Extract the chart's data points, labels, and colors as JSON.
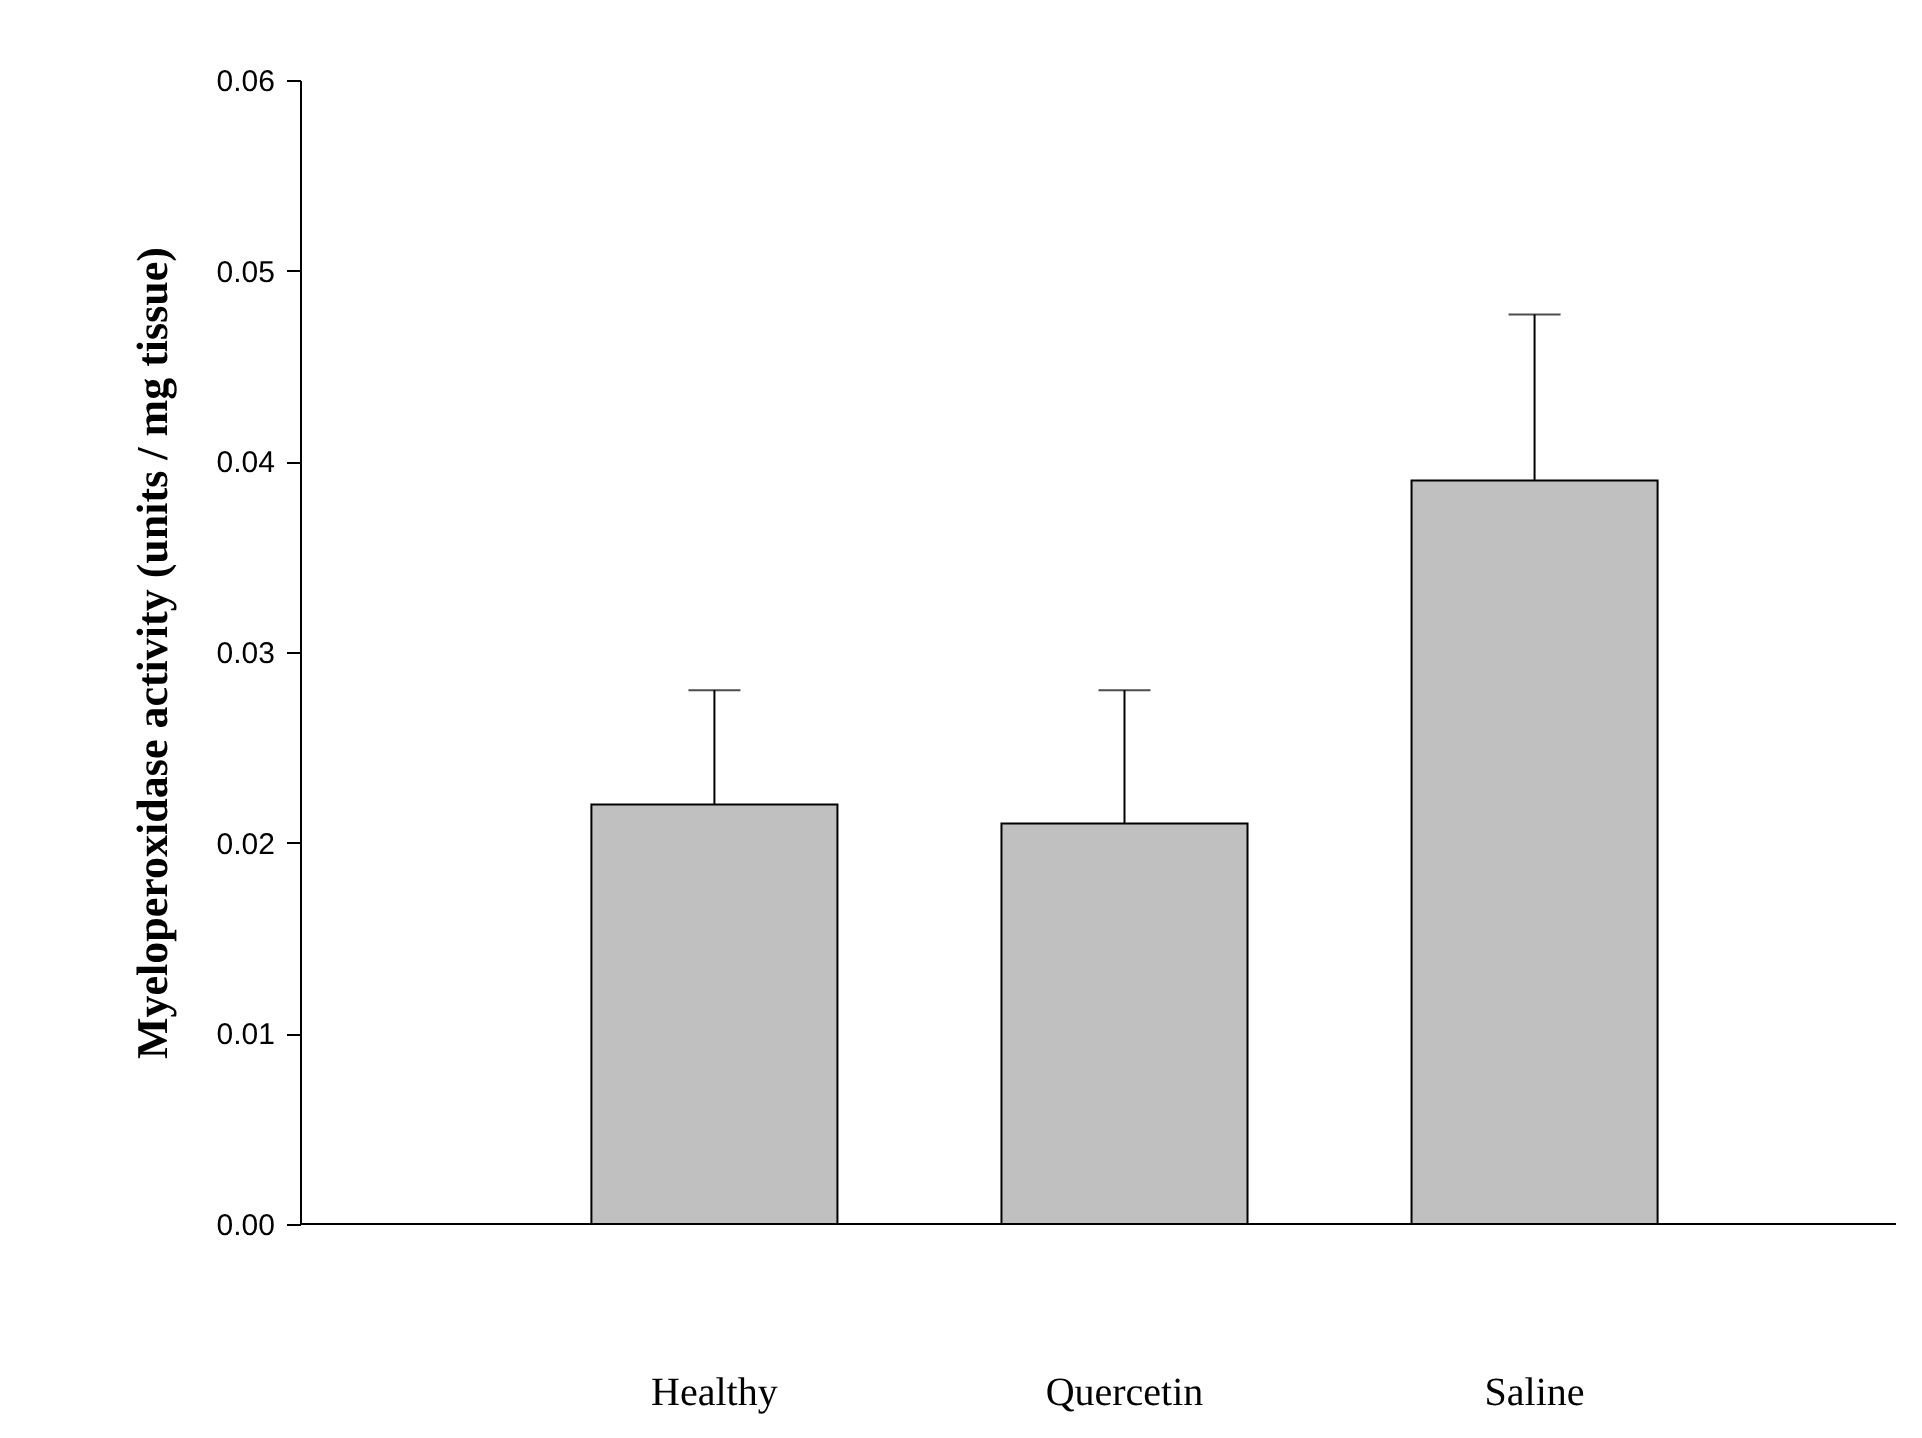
{
  "chart_data": {
    "type": "bar",
    "ylabel": "Myeloperoxidase  activity  (units / mg tissue)",
    "categories": [
      "Healthy",
      "Quercetin",
      "Saline"
    ],
    "values": [
      0.022,
      0.021,
      0.039
    ],
    "errors": [
      [
        0.022,
        0.028
      ],
      [
        0.021,
        0.028
      ],
      [
        0.039,
        0.0477
      ]
    ],
    "color": "#c0c0c0",
    "ylim": [
      0,
      0.06
    ],
    "yticks": [
      {
        "value": 0,
        "label": "0.00"
      },
      {
        "value": 0.01,
        "label": "0.01"
      },
      {
        "value": 0.02,
        "label": "0.02"
      },
      {
        "value": 0.03,
        "label": "0.03"
      },
      {
        "value": 0.04,
        "label": "0.04"
      },
      {
        "value": 0.05,
        "label": "0.05"
      },
      {
        "value": 0.06,
        "label": "0.06"
      }
    ],
    "grid": false
  }
}
